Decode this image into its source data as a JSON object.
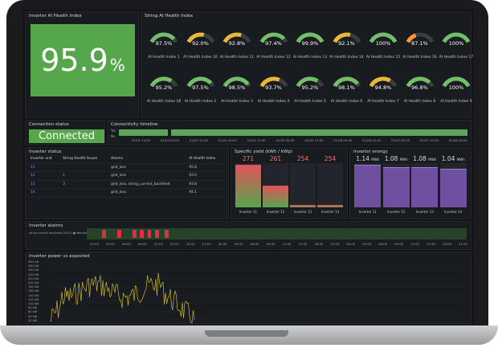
{
  "inverter_health": {
    "title": "Inverter AI Health Index",
    "value": "95.9",
    "unit": "%"
  },
  "string_health": {
    "title": "String AI Health Index",
    "gauges": [
      {
        "label": "AI Health Index 1",
        "value": "97.5%",
        "pct": 97.5,
        "color": "#73bf69"
      },
      {
        "label": "AI Health Index 10",
        "value": "92.0%",
        "pct": 92.0,
        "color": "#eab839"
      },
      {
        "label": "AI Health Index 11",
        "value": "92.8%",
        "pct": 92.8,
        "color": "#eab839"
      },
      {
        "label": "AI Health Index 12",
        "value": "97.4%",
        "pct": 97.4,
        "color": "#73bf69"
      },
      {
        "label": "AI Health Index 13",
        "value": "99.9%",
        "pct": 99.9,
        "color": "#73bf69"
      },
      {
        "label": "AI Health Index 14",
        "value": "92.1%",
        "pct": 92.1,
        "color": "#eab839"
      },
      {
        "label": "AI Health Index 15",
        "value": "100%",
        "pct": 100,
        "color": "#73bf69"
      },
      {
        "label": "AI Health Index 16",
        "value": "87.1%",
        "pct": 87.1,
        "color": "#ff9830"
      },
      {
        "label": "AI Health Index 17",
        "value": "100%",
        "pct": 100,
        "color": "#73bf69"
      },
      {
        "label": "AI Health Index 18",
        "value": "95.2%",
        "pct": 95.2,
        "color": "#73bf69"
      },
      {
        "label": "AI Health Index 2",
        "value": "97.5%",
        "pct": 97.5,
        "color": "#73bf69"
      },
      {
        "label": "AI Health Index 3",
        "value": "98.5%",
        "pct": 98.5,
        "color": "#73bf69"
      },
      {
        "label": "AI Health Index 4",
        "value": "93.7%",
        "pct": 93.7,
        "color": "#eab839"
      },
      {
        "label": "AI Health Index 5",
        "value": "95.2%",
        "pct": 95.2,
        "color": "#73bf69"
      },
      {
        "label": "AI Health Index 6",
        "value": "98.1%",
        "pct": 98.1,
        "color": "#73bf69"
      },
      {
        "label": "AI Health Index 7",
        "value": "94.8%",
        "pct": 94.8,
        "color": "#eab839"
      },
      {
        "label": "AI Health Index 8",
        "value": "96.8%",
        "pct": 96.8,
        "color": "#73bf69"
      },
      {
        "label": "AI Health Index 9",
        "value": "100%",
        "pct": 100,
        "color": "#73bf69"
      }
    ]
  },
  "connection": {
    "title": "Connection status",
    "value": "Connected"
  },
  "timeline": {
    "title": "Connectivity timeline",
    "rows": [
      "Yes",
      "No"
    ],
    "ticks": [
      "01/02 12:00",
      "01/03 00:00",
      "01/03 12:00",
      "01/04 00:00",
      "01/04 12:00",
      "01/05 00:00",
      "01/05 12:00",
      "01/06 00:00",
      "01/06 12:00",
      "01/07 00:00",
      "01/07 12:00",
      "01/08 00:00"
    ]
  },
  "inverter_status": {
    "title": "Inverter status",
    "headers": [
      "Inverter unit",
      "String Health Issues",
      "Alarms",
      "AI Health Index"
    ],
    "rows": [
      {
        "unit": "11",
        "issues": "",
        "alarms": "grid_loss",
        "index": "95.8"
      },
      {
        "unit": "12",
        "issues": "1",
        "alarms": "grid_loss",
        "index": "93.0"
      },
      {
        "unit": "13",
        "issues": "3",
        "alarms": "grid_loss, string_current_backfeed",
        "index": "93.8"
      },
      {
        "unit": "14",
        "issues": "",
        "alarms": "grid_loss",
        "index": "94.1"
      }
    ]
  },
  "specific_yield": {
    "title": "Specific yield (kWh / kWp)",
    "bars": [
      {
        "label": "Inverter 11",
        "value": "271",
        "fill": 0.95
      },
      {
        "label": "Inverter 12",
        "value": "261",
        "fill": 0.47
      },
      {
        "label": "Inverter 13",
        "value": "254",
        "fill": 0.03
      },
      {
        "label": "Inverter 14",
        "value": "254",
        "fill": 0.03
      }
    ]
  },
  "inverter_energy": {
    "title": "Inverter energy",
    "bars": [
      {
        "label": "Inverter 11",
        "value": "1.14",
        "unit": "MWh",
        "fill": 0.95
      },
      {
        "label": "Inverter 12",
        "value": "1.08",
        "unit": "MWh",
        "fill": 0.9
      },
      {
        "label": "Inverter 13",
        "value": "1.08",
        "unit": "MWh",
        "fill": 0.9
      },
      {
        "label": "Inverter 14",
        "value": "1.04",
        "unit": "MWh",
        "fill": 0.86
      }
    ]
  },
  "alarms": {
    "title": "Inverter alarms",
    "row_label": "string current backfeed (2023) ● Warning",
    "ticks": [
      "00:00",
      "03:00",
      "06:00",
      "09:00",
      "12:00",
      "15:00",
      "18:00",
      "21:00",
      "00:00",
      "03:00",
      "06:00",
      "09:00",
      "12:00",
      "15:00",
      "18:00",
      "21:00",
      "00:00",
      "03:00",
      "06:00",
      "09:00",
      "12:00",
      "15:00",
      "18:00",
      "21:00"
    ]
  },
  "power": {
    "title": "Inverter power vs expected",
    "yticks": [
      "300 kW",
      "280 kW",
      "260 kW",
      "240 kW",
      "220 kW",
      "200 kW",
      "180 kW",
      "160 kW",
      "140 kW",
      "120 kW",
      "100 kW",
      "80 kW",
      "60 kW",
      "40 kW",
      "20 kW"
    ],
    "line_color": "#cdb82c"
  }
}
